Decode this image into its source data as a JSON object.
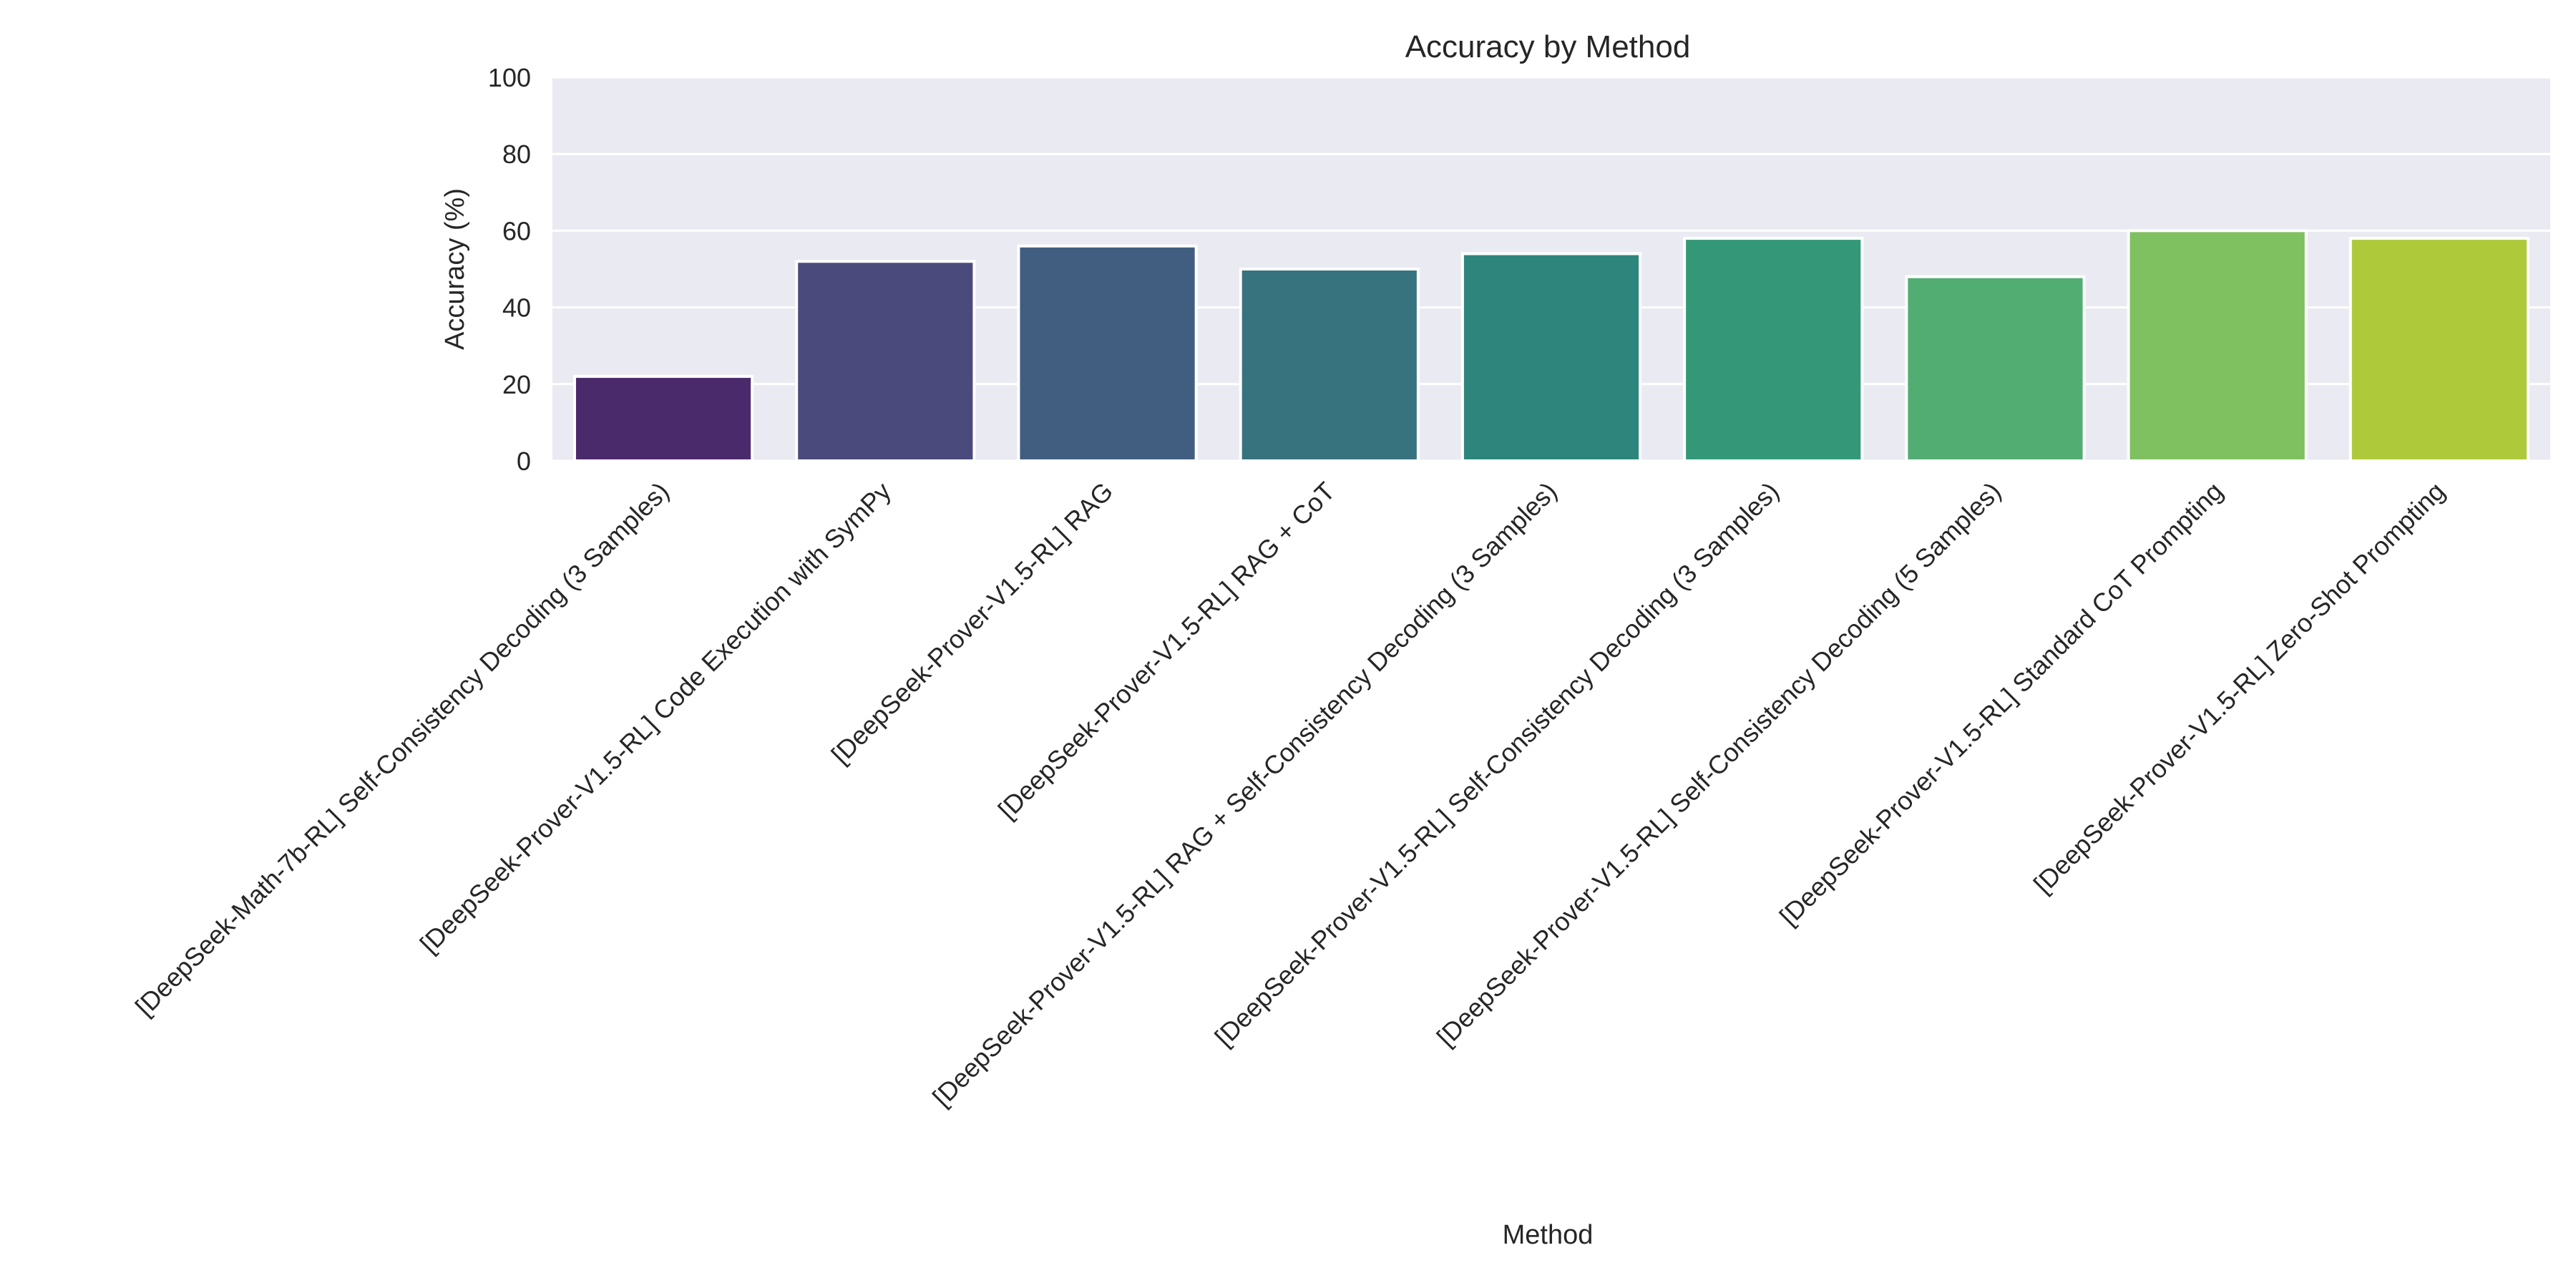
{
  "chart_data": {
    "type": "bar",
    "title": "Accuracy by Method",
    "xlabel": "Method",
    "ylabel": "Accuracy (%)",
    "ylim": [
      0,
      100
    ],
    "yticks": [
      0,
      20,
      40,
      60,
      80,
      100
    ],
    "grid": true,
    "categories": [
      "[DeepSeek-Math-7b-RL] Self-Consistency Decoding (3 Samples)",
      "[DeepSeek-Prover-V1.5-RL] Code Execution with SymPy",
      "[DeepSeek-Prover-V1.5-RL] RAG",
      "[DeepSeek-Prover-V1.5-RL] RAG + CoT",
      "[DeepSeek-Prover-V1.5-RL] RAG + Self-Consistency Decoding (3 Samples)",
      "[DeepSeek-Prover-V1.5-RL] Self-Consistency Decoding (3 Samples)",
      "[DeepSeek-Prover-V1.5-RL] Self-Consistency Decoding (5 Samples)",
      "[DeepSeek-Prover-V1.5-RL] Standard CoT Prompting",
      "[DeepSeek-Prover-V1.5-RL] Zero-Shot Prompting"
    ],
    "values": [
      22,
      52,
      56,
      50,
      54,
      58,
      48,
      60,
      58
    ],
    "colors": [
      "#4b2a6b",
      "#4a4a7c",
      "#415e80",
      "#37727f",
      "#2e857c",
      "#349878",
      "#52ad72",
      "#7fc160",
      "#aec93a"
    ],
    "background_color": "#eaeaf2",
    "grid_color": "#ffffff"
  }
}
